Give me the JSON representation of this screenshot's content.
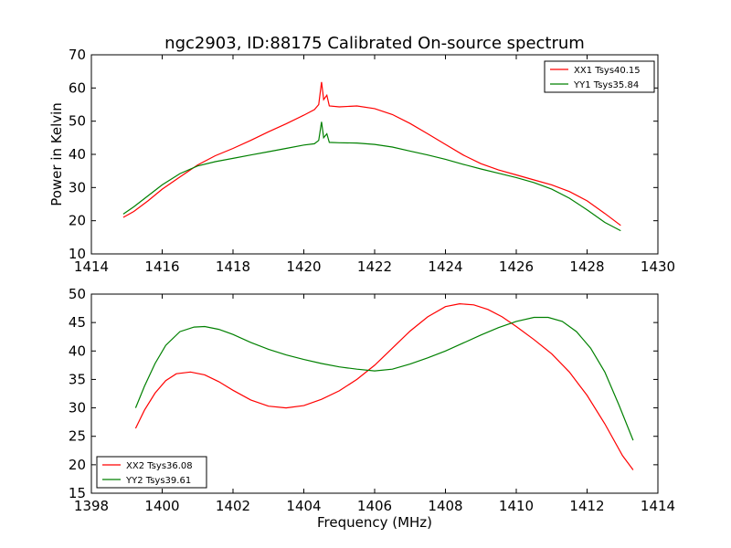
{
  "figure": {
    "title": "ngc2903, ID:88175 Calibrated On-source spectrum",
    "ylabel": "Power in Kelvin",
    "xlabel": "Frequency (MHz)"
  },
  "chart_data": [
    {
      "type": "line",
      "title": "ngc2903, ID:88175 Calibrated On-source spectrum",
      "xlabel": "",
      "ylabel": "Power in Kelvin",
      "xlim": [
        1414,
        1430
      ],
      "ylim": [
        10,
        70
      ],
      "xticks": [
        1414,
        1416,
        1418,
        1420,
        1422,
        1424,
        1426,
        1428,
        1430
      ],
      "yticks": [
        10,
        20,
        30,
        40,
        50,
        60,
        70
      ],
      "grid": false,
      "legend": "top-right",
      "series": [
        {
          "name": "XX1 Tsys40.15",
          "color": "#ff0000",
          "points": [
            [
              1414.9,
              21.0
            ],
            [
              1415.2,
              22.8
            ],
            [
              1415.6,
              26.0
            ],
            [
              1416.0,
              29.5
            ],
            [
              1416.5,
              33.2
            ],
            [
              1417.0,
              36.8
            ],
            [
              1417.5,
              39.6
            ],
            [
              1418.0,
              41.8
            ],
            [
              1418.5,
              44.2
            ],
            [
              1419.0,
              46.8
            ],
            [
              1419.5,
              49.2
            ],
            [
              1420.0,
              51.8
            ],
            [
              1420.3,
              53.5
            ],
            [
              1420.42,
              55.0
            ],
            [
              1420.5,
              61.8
            ],
            [
              1420.56,
              56.5
            ],
            [
              1420.65,
              57.8
            ],
            [
              1420.72,
              54.6
            ],
            [
              1421.0,
              54.3
            ],
            [
              1421.5,
              54.6
            ],
            [
              1422.0,
              53.8
            ],
            [
              1422.5,
              52.0
            ],
            [
              1423.0,
              49.3
            ],
            [
              1423.5,
              46.2
            ],
            [
              1424.0,
              43.0
            ],
            [
              1424.5,
              39.8
            ],
            [
              1425.0,
              37.2
            ],
            [
              1425.5,
              35.3
            ],
            [
              1426.0,
              33.8
            ],
            [
              1426.5,
              32.3
            ],
            [
              1427.0,
              30.8
            ],
            [
              1427.5,
              28.8
            ],
            [
              1428.0,
              26.0
            ],
            [
              1428.5,
              22.2
            ],
            [
              1428.95,
              18.6
            ]
          ]
        },
        {
          "name": "YY1 Tsys35.84",
          "color": "#008000",
          "points": [
            [
              1414.9,
              22.0
            ],
            [
              1415.2,
              24.2
            ],
            [
              1415.6,
              27.5
            ],
            [
              1416.0,
              30.8
            ],
            [
              1416.5,
              34.2
            ],
            [
              1417.0,
              36.5
            ],
            [
              1417.5,
              37.8
            ],
            [
              1418.0,
              38.8
            ],
            [
              1418.5,
              39.8
            ],
            [
              1419.0,
              40.8
            ],
            [
              1419.5,
              41.8
            ],
            [
              1420.0,
              42.8
            ],
            [
              1420.3,
              43.2
            ],
            [
              1420.42,
              44.2
            ],
            [
              1420.5,
              49.8
            ],
            [
              1420.56,
              45.0
            ],
            [
              1420.65,
              46.2
            ],
            [
              1420.72,
              43.6
            ],
            [
              1421.0,
              43.5
            ],
            [
              1421.5,
              43.4
            ],
            [
              1422.0,
              43.0
            ],
            [
              1422.5,
              42.2
            ],
            [
              1423.0,
              41.0
            ],
            [
              1423.5,
              39.8
            ],
            [
              1424.0,
              38.5
            ],
            [
              1424.5,
              37.0
            ],
            [
              1425.0,
              35.6
            ],
            [
              1425.5,
              34.3
            ],
            [
              1426.0,
              33.0
            ],
            [
              1426.5,
              31.5
            ],
            [
              1427.0,
              29.5
            ],
            [
              1427.5,
              26.8
            ],
            [
              1428.0,
              23.3
            ],
            [
              1428.5,
              19.5
            ],
            [
              1428.95,
              17.0
            ]
          ]
        }
      ]
    },
    {
      "type": "line",
      "title": "",
      "xlabel": "Frequency (MHz)",
      "ylabel": "",
      "xlim": [
        1398,
        1414
      ],
      "ylim": [
        15,
        50
      ],
      "xticks": [
        1398,
        1400,
        1402,
        1404,
        1406,
        1408,
        1410,
        1412,
        1414
      ],
      "yticks": [
        15,
        20,
        25,
        30,
        35,
        40,
        45,
        50
      ],
      "grid": false,
      "legend": "bottom-left",
      "series": [
        {
          "name": "XX2 Tsys36.08",
          "color": "#ff0000",
          "points": [
            [
              1399.25,
              26.4
            ],
            [
              1399.5,
              29.6
            ],
            [
              1399.8,
              32.6
            ],
            [
              1400.1,
              34.8
            ],
            [
              1400.4,
              36.0
            ],
            [
              1400.8,
              36.3
            ],
            [
              1401.2,
              35.8
            ],
            [
              1401.6,
              34.6
            ],
            [
              1402.0,
              33.1
            ],
            [
              1402.5,
              31.4
            ],
            [
              1403.0,
              30.3
            ],
            [
              1403.5,
              30.0
            ],
            [
              1404.0,
              30.4
            ],
            [
              1404.5,
              31.5
            ],
            [
              1405.0,
              33.0
            ],
            [
              1405.5,
              35.0
            ],
            [
              1406.0,
              37.5
            ],
            [
              1406.5,
              40.5
            ],
            [
              1407.0,
              43.5
            ],
            [
              1407.5,
              46.0
            ],
            [
              1408.0,
              47.8
            ],
            [
              1408.4,
              48.3
            ],
            [
              1408.8,
              48.1
            ],
            [
              1409.2,
              47.3
            ],
            [
              1409.6,
              46.0
            ],
            [
              1410.0,
              44.3
            ],
            [
              1410.5,
              42.0
            ],
            [
              1411.0,
              39.5
            ],
            [
              1411.5,
              36.3
            ],
            [
              1412.0,
              32.2
            ],
            [
              1412.5,
              27.2
            ],
            [
              1413.0,
              21.6
            ],
            [
              1413.3,
              19.1
            ]
          ]
        },
        {
          "name": "YY2 Tsys39.61",
          "color": "#008000",
          "points": [
            [
              1399.25,
              30.0
            ],
            [
              1399.5,
              33.8
            ],
            [
              1399.8,
              37.8
            ],
            [
              1400.1,
              41.0
            ],
            [
              1400.5,
              43.4
            ],
            [
              1400.9,
              44.2
            ],
            [
              1401.2,
              44.3
            ],
            [
              1401.6,
              43.8
            ],
            [
              1402.0,
              42.9
            ],
            [
              1402.5,
              41.5
            ],
            [
              1403.0,
              40.3
            ],
            [
              1403.5,
              39.3
            ],
            [
              1404.0,
              38.5
            ],
            [
              1404.5,
              37.8
            ],
            [
              1405.0,
              37.2
            ],
            [
              1405.5,
              36.8
            ],
            [
              1406.0,
              36.5
            ],
            [
              1406.5,
              36.8
            ],
            [
              1407.0,
              37.7
            ],
            [
              1407.5,
              38.8
            ],
            [
              1408.0,
              40.0
            ],
            [
              1408.5,
              41.4
            ],
            [
              1409.0,
              42.8
            ],
            [
              1409.5,
              44.1
            ],
            [
              1410.0,
              45.2
            ],
            [
              1410.5,
              45.9
            ],
            [
              1410.9,
              45.9
            ],
            [
              1411.3,
              45.2
            ],
            [
              1411.7,
              43.4
            ],
            [
              1412.1,
              40.5
            ],
            [
              1412.5,
              36.3
            ],
            [
              1412.9,
              30.5
            ],
            [
              1413.3,
              24.3
            ]
          ]
        }
      ]
    }
  ]
}
